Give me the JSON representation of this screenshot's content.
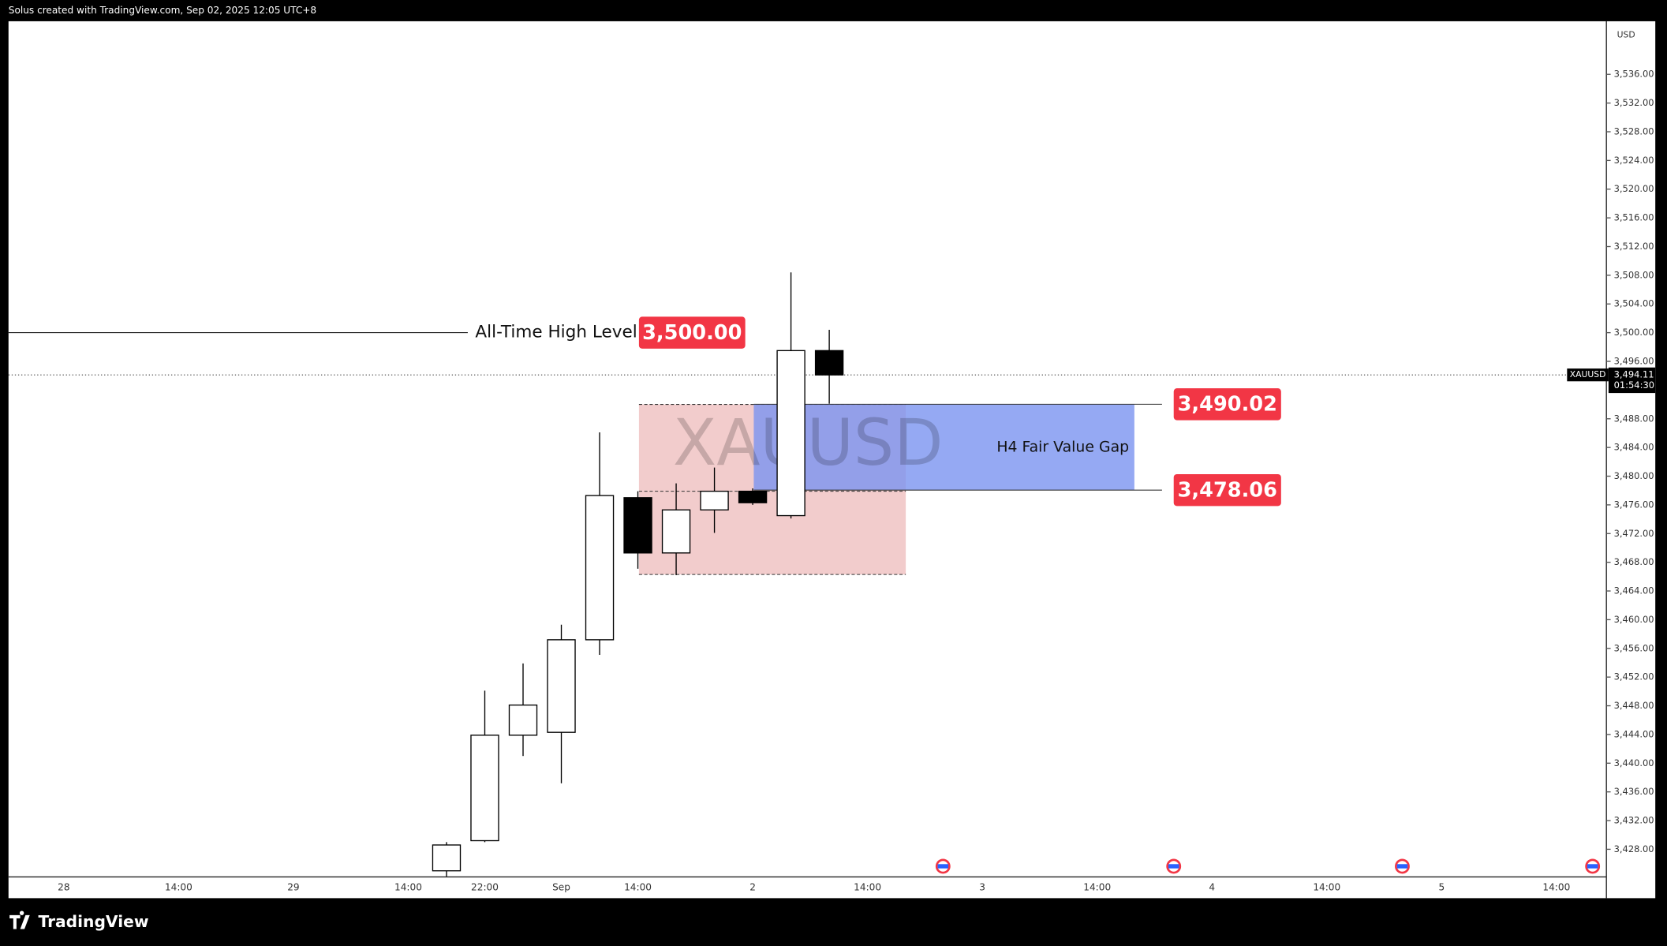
{
  "chart_data": {
    "type": "candlestick",
    "header": "Solus created with TradingView.com, Sep 02, 2025 12:05 UTC+8",
    "watermark": "XAUUSD",
    "y_label": "USD",
    "brand": "TradingView",
    "ylim": [
      3424.15,
      3543.4
    ],
    "yticks": [
      {
        "value": 3428,
        "label": "3,428.00"
      },
      {
        "value": 3432,
        "label": "3,432.00"
      },
      {
        "value": 3436,
        "label": "3,436.00"
      },
      {
        "value": 3440,
        "label": "3,440.00"
      },
      {
        "value": 3444,
        "label": "3,444.00"
      },
      {
        "value": 3448,
        "label": "3,448.00"
      },
      {
        "value": 3452,
        "label": "3,452.00"
      },
      {
        "value": 3456,
        "label": "3,456.00"
      },
      {
        "value": 3460,
        "label": "3,460.00"
      },
      {
        "value": 3464,
        "label": "3,464.00"
      },
      {
        "value": 3468,
        "label": "3,468.00"
      },
      {
        "value": 3472,
        "label": "3,472.00"
      },
      {
        "value": 3476,
        "label": "3,476.00"
      },
      {
        "value": 3480,
        "label": "3,480.00"
      },
      {
        "value": 3484,
        "label": "3,484.00"
      },
      {
        "value": 3488,
        "label": "3,488.00"
      },
      {
        "value": 3496,
        "label": "3,496.00"
      },
      {
        "value": 3500,
        "label": "3,500.00"
      },
      {
        "value": 3504,
        "label": "3,504.00"
      },
      {
        "value": 3508,
        "label": "3,508.00"
      },
      {
        "value": 3512,
        "label": "3,512.00"
      },
      {
        "value": 3516,
        "label": "3,516.00"
      },
      {
        "value": 3520,
        "label": "3,520.00"
      },
      {
        "value": 3524,
        "label": "3,524.00"
      },
      {
        "value": 3528,
        "label": "3,528.00"
      },
      {
        "value": 3532,
        "label": "3,532.00"
      },
      {
        "value": 3536,
        "label": "3,536.00"
      }
    ],
    "x_labels": [
      "28",
      "14:00",
      "29",
      "14:00",
      "22:00",
      "Sep",
      "14:00",
      "2",
      "14:00",
      "3",
      "14:00",
      "4",
      "14:00",
      "5",
      "14:00"
    ],
    "up_color": "#ffffff",
    "down_color": "#000000",
    "open": [
      3425.0,
      3429.2,
      3443.9,
      3444.3,
      3457.2,
      3477.0,
      3469.3,
      3475.3,
      3477.9,
      3474.5,
      3497.5
    ],
    "high": [
      3429.0,
      3450.1,
      3453.9,
      3459.3,
      3486.1,
      3477.9,
      3479.0,
      3481.2,
      3478.3,
      3508.4,
      3500.4
    ],
    "low": [
      3424.2,
      3429.0,
      3441.0,
      3437.2,
      3455.1,
      3467.1,
      3466.2,
      3472.1,
      3476.0,
      3474.1,
      3490.1
    ],
    "close": [
      3428.6,
      3443.9,
      3448.1,
      3457.2,
      3477.3,
      3469.3,
      3475.3,
      3477.9,
      3476.3,
      3497.5,
      3494.11
    ],
    "ath": {
      "text": "All-Time High Level",
      "value": 3500,
      "value_label": "3,500.00",
      "color": "#f23645"
    },
    "zone": {
      "top": 3490.0,
      "mid": 3477.9,
      "bottom": 3466.3,
      "color": "#f2cccc"
    },
    "fvg": {
      "text": "H4 Fair Value Gap",
      "color": "#7b93f0",
      "top": {
        "value": 3490.02,
        "label": "3,490.02"
      },
      "bottom": {
        "value": 3478.06,
        "label": "3,478.06"
      }
    },
    "last_price": {
      "symbol": "XAUUSD",
      "value": 3494.11,
      "label": "3,494.11",
      "countdown": "01:54:30"
    }
  }
}
